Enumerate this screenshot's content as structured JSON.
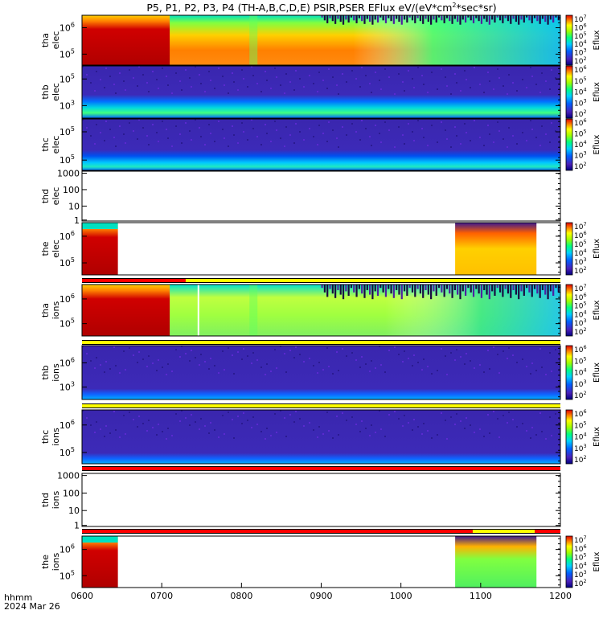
{
  "title": "P5, P1, P2, P3, P4 (TH-A,B,C,D,E) PSIR,PSER EFlux eV/(eV*cm",
  "title_sup": "2",
  "title_end": "*sec*sr)",
  "colorbar_label": "Eflux",
  "xaxis": {
    "tick_labels": [
      "0600",
      "0700",
      "0800",
      "0900",
      "1000",
      "1100",
      "1200"
    ],
    "footer_label": "hhmm",
    "footer_date": "2024 Mar 26"
  },
  "chart_data": [
    {
      "type": "heatmap",
      "ylabel": [
        "tha",
        "elec"
      ],
      "yticks": [
        {
          "base": "10",
          "exp": "6"
        },
        {
          "base": "10",
          "exp": "5"
        }
      ],
      "zticks": [
        "10^7",
        "10^6",
        "10^5",
        "10^4",
        "10^3",
        "10^2"
      ],
      "x_range": [
        "0600",
        "1200"
      ]
    },
    {
      "type": "heatmap",
      "ylabel": [
        "thb",
        "elec"
      ],
      "yticks": [
        {
          "base": "10",
          "exp": "5"
        },
        {
          "base": "10",
          "exp": "3"
        }
      ],
      "zticks": [
        "10^6",
        "10^5",
        "10^4",
        "10^3",
        "10^2"
      ],
      "x_range": [
        "0600",
        "1200"
      ]
    },
    {
      "type": "heatmap",
      "ylabel": [
        "thc",
        "elec"
      ],
      "yticks": [
        {
          "base": "10",
          "exp": "5"
        },
        {
          "base": "10",
          "exp": "5"
        }
      ],
      "zticks": [
        "10^6",
        "10^5",
        "10^4",
        "10^3",
        "10^2"
      ],
      "x_range": [
        "0600",
        "1200"
      ]
    },
    {
      "type": "heatmap",
      "ylabel": [
        "thd",
        "elec"
      ],
      "yticks": [
        {
          "label": "1000"
        },
        {
          "label": "100"
        },
        {
          "label": "10"
        },
        {
          "label": "1"
        }
      ],
      "zticks": [],
      "x_range": [
        "0600",
        "1200"
      ],
      "ylim": [
        1,
        1000
      ]
    },
    {
      "type": "heatmap",
      "ylabel": [
        "the",
        "elec"
      ],
      "yticks": [
        {
          "base": "10",
          "exp": "6"
        },
        {
          "base": "10",
          "exp": "5"
        }
      ],
      "zticks": [
        "10^7",
        "10^6",
        "10^5",
        "10^4",
        "10^3",
        "10^2"
      ],
      "x_range": [
        "0600",
        "1200"
      ],
      "coverage": [
        [
          "0600",
          "0645"
        ],
        [
          "1068",
          "1170"
        ]
      ]
    },
    {
      "type": "heatmap",
      "ylabel": [
        "tha",
        "ions"
      ],
      "yticks": [
        {
          "base": "10",
          "exp": "6"
        },
        {
          "base": "10",
          "exp": "5"
        }
      ],
      "zticks": [
        "10^7",
        "10^6",
        "10^5",
        "10^4",
        "10^3",
        "10^2"
      ],
      "x_range": [
        "0600",
        "1200"
      ]
    },
    {
      "type": "heatmap",
      "ylabel": [
        "thb",
        "ions"
      ],
      "yticks": [
        {
          "base": "10",
          "exp": "6"
        },
        {
          "base": "10",
          "exp": "3"
        }
      ],
      "zticks": [
        "10^6",
        "10^5",
        "10^4",
        "10^3",
        "10^2"
      ],
      "x_range": [
        "0600",
        "1200"
      ]
    },
    {
      "type": "heatmap",
      "ylabel": [
        "thc",
        "ions"
      ],
      "yticks": [
        {
          "base": "10",
          "exp": "6"
        },
        {
          "base": "10",
          "exp": "5"
        }
      ],
      "zticks": [
        "10^6",
        "10^5",
        "10^4",
        "10^3",
        "10^2"
      ],
      "x_range": [
        "0600",
        "1200"
      ]
    },
    {
      "type": "heatmap",
      "ylabel": [
        "thd",
        "ions"
      ],
      "yticks": [
        {
          "label": "1000"
        },
        {
          "label": "100"
        },
        {
          "label": "10"
        },
        {
          "label": "1"
        }
      ],
      "zticks": [],
      "x_range": [
        "0600",
        "1200"
      ],
      "ylim": [
        1,
        1000
      ]
    },
    {
      "type": "heatmap",
      "ylabel": [
        "the",
        "ions"
      ],
      "yticks": [
        {
          "base": "10",
          "exp": "6"
        },
        {
          "base": "10",
          "exp": "5"
        }
      ],
      "zticks": [
        "10^7",
        "10^6",
        "10^5",
        "10^4",
        "10^3",
        "10^2"
      ],
      "x_range": [
        "0600",
        "1200"
      ],
      "coverage": [
        [
          "0600",
          "0645"
        ],
        [
          "1068",
          "1170"
        ]
      ]
    }
  ],
  "colors": {
    "saturated": "#c00000",
    "high": "#ff7a00",
    "mid_high": "#ffff00",
    "mid": "#80ff00",
    "mid_low": "#00e0a0",
    "low": "#0090ff",
    "floor": "#3c22b0",
    "flag_red": "#ff0000",
    "flag_yellow": "#ffff00"
  }
}
